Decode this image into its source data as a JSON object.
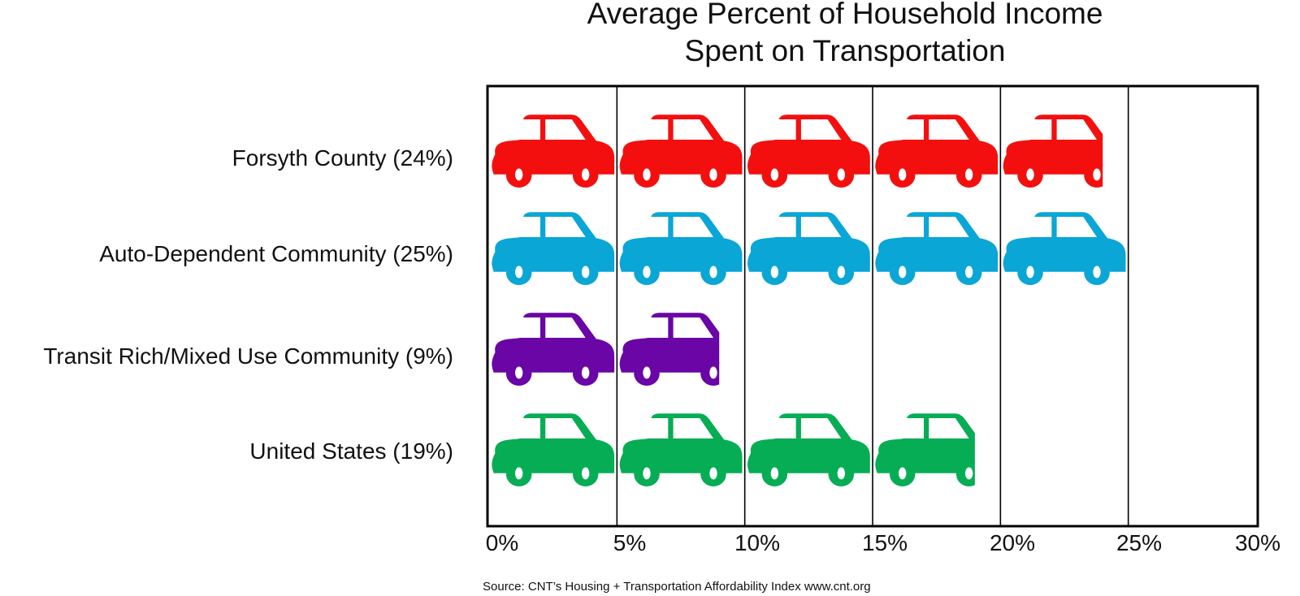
{
  "chart_data": {
    "type": "bar",
    "style": "pictogram",
    "icon": "car-icon",
    "units_per_icon": 5,
    "title_lines": [
      "Average Percent of Household Income",
      "Spent on Transportation"
    ],
    "categories": [
      "Forsyth County (24%)",
      "Auto-Dependent Community (25%)",
      "Transit Rich/Mixed Use Community (9%)",
      "United States (19%)"
    ],
    "values": [
      24,
      25,
      9,
      19
    ],
    "colors": [
      "#f40f0f",
      "#0aa6d6",
      "#6a05a6",
      "#06ad55"
    ],
    "xlim": [
      0,
      30
    ],
    "xticks": [
      0,
      5,
      10,
      15,
      20,
      25,
      30
    ],
    "xtick_labels": [
      "0%",
      "5%",
      "10%",
      "15%",
      "20%",
      "25%",
      "30%"
    ],
    "xlabel": "",
    "ylabel": "",
    "grid": "vertical",
    "legend": "none",
    "source": "Source: CNT’s Housing + Transportation Affordability Index www.cnt.org"
  }
}
